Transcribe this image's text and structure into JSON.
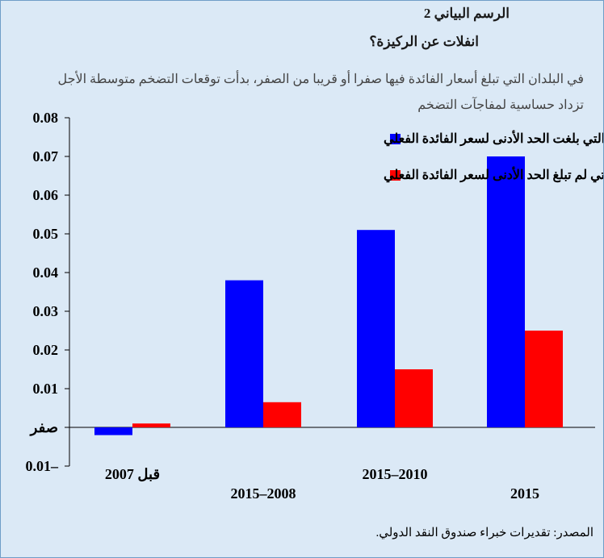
{
  "header": {
    "title": "الرسم البياني 2",
    "subtitle": "انفلات عن الركيزة؟",
    "description": "في البلدان التي تبلغ أسعار الفائدة فيها صفرا أو قريبا من الصفر، بدأت توقعات التضخم متوسطة الأجل تزداد حساسية لمفاجآت التضخم"
  },
  "source": "المصدر: تقديرات خبراء صندوق النقد الدولي.",
  "colors": {
    "background": "#dbe9f6",
    "series1": "#0000ff",
    "series2": "#ff0000"
  },
  "chart_data": {
    "type": "bar",
    "categories": [
      "قبل 2007",
      "2015–2008",
      "2015–2010",
      "2015"
    ],
    "series": [
      {
        "name": "البلدان التي بلغت الحد الأدنى لسعر الفائدة الفعلي",
        "color": "#0000ff",
        "values": [
          -0.002,
          0.038,
          0.051,
          0.07
        ]
      },
      {
        "name": "البلدان التي لم تبلغ الحد الأدنى لسعر الفائدة الفعلي",
        "color": "#ff0000",
        "values": [
          0.001,
          0.0065,
          0.015,
          0.025
        ]
      }
    ],
    "ylim": [
      -0.01,
      0.08
    ],
    "yticks": [
      -0.01,
      0,
      0.01,
      0.02,
      0.03,
      0.04,
      0.05,
      0.06,
      0.07,
      0.08
    ],
    "ytick_labels": [
      "0.01–",
      "صفر",
      "0.01",
      "0.02",
      "0.03",
      "0.04",
      "0.05",
      "0.06",
      "0.07",
      "0.08"
    ],
    "legend_position": "top-left",
    "grid": false
  }
}
